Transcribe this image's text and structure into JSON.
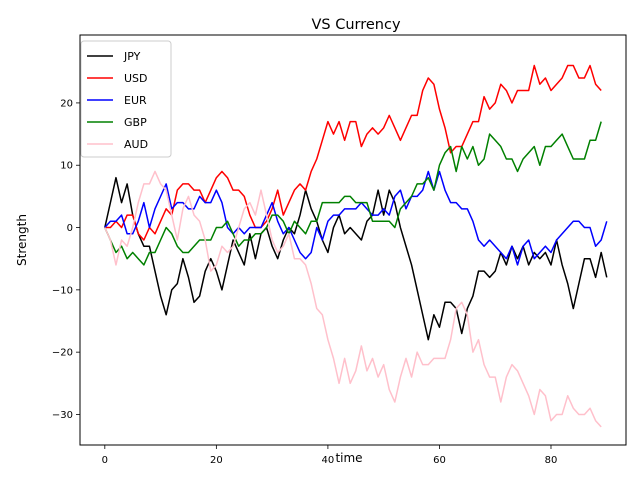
{
  "chart_data": {
    "type": "line",
    "title": "VS Currency",
    "xlabel": "time",
    "ylabel": "Strength",
    "xlim": [
      -4.45,
      93.45
    ],
    "ylim": [
      -34.9,
      30.9
    ],
    "xticks": [
      0,
      20,
      40,
      60,
      80
    ],
    "yticks": [
      -30,
      -20,
      -10,
      0,
      10,
      20
    ],
    "grid": false,
    "legend_position": "top-left",
    "series": [
      {
        "name": "JPY",
        "color": "#000000",
        "values": [
          0,
          4,
          8,
          4,
          7,
          2,
          -1,
          -3,
          -3,
          -7,
          -11,
          -14,
          -10,
          -9,
          -5,
          -8,
          -12,
          -11,
          -7,
          -5,
          -7,
          -10,
          -6,
          -2,
          -4,
          -6,
          -1,
          -5,
          -1,
          0,
          -3,
          -5,
          -2,
          0,
          -1,
          2,
          6,
          3,
          1,
          -2,
          -4,
          0,
          2,
          -1,
          0,
          -1,
          -2,
          1,
          2,
          6,
          2,
          6,
          4,
          0,
          -3,
          -6,
          -10,
          -14,
          -18,
          -14,
          -16,
          -12,
          -12,
          -13,
          -17,
          -13,
          -11,
          -7,
          -7,
          -8,
          -7,
          -4,
          -6,
          -3,
          -5,
          -3,
          -6,
          -4,
          -5,
          -4,
          -6,
          -2,
          -6,
          -9,
          -13,
          -9,
          -5,
          -5,
          -8,
          -4,
          -8
        ],
        "x": null
      },
      {
        "name": "USD",
        "color": "#ff0000",
        "values": [
          0,
          0,
          1,
          0,
          2,
          2,
          -1,
          -2,
          0,
          -1,
          1,
          3,
          2,
          6,
          7,
          7,
          6,
          6,
          4,
          6,
          8,
          9,
          8,
          6,
          6,
          5,
          2,
          0,
          0,
          1,
          3,
          6,
          2,
          4,
          6,
          7,
          6,
          9,
          11,
          14,
          17,
          15,
          17,
          14,
          17,
          17,
          13,
          15,
          16,
          15,
          16,
          18,
          16,
          14,
          16,
          18,
          18,
          22,
          24,
          23,
          19,
          16,
          12,
          13,
          13,
          15,
          17,
          17,
          21,
          19,
          20,
          23,
          22,
          20,
          22,
          22,
          22,
          26,
          23,
          24,
          22,
          23,
          24,
          26,
          26,
          24,
          24,
          26,
          23,
          22
        ]
      },
      {
        "name": "EUR",
        "color": "#0000ff",
        "values": [
          0,
          1,
          1,
          2,
          -1,
          -1,
          1,
          4,
          0,
          3,
          5,
          7,
          3,
          4,
          4,
          3,
          3,
          5,
          4,
          4,
          6,
          4,
          0,
          -1,
          0,
          -1,
          0,
          0,
          0,
          2,
          4,
          1,
          -1,
          0,
          -2,
          -4,
          -5,
          -4,
          0,
          -2,
          1,
          2,
          2,
          3,
          3,
          3,
          4,
          3,
          2,
          2,
          3,
          2,
          5,
          6,
          3,
          5,
          5,
          6,
          9,
          6,
          9,
          6,
          4,
          4,
          3,
          3,
          1,
          -2,
          -3,
          -2,
          -3,
          -4,
          -5,
          -3,
          -6,
          -3,
          -2,
          -5,
          -4,
          -3,
          -4,
          -2,
          -1,
          0,
          1,
          1,
          0,
          0,
          -3,
          -2,
          1
        ]
      },
      {
        "name": "GBP",
        "color": "#008000",
        "values": [
          0,
          -2,
          -4,
          -3,
          -5,
          -4,
          -5,
          -6,
          -4,
          -4,
          -2,
          0,
          -1,
          -3,
          -4,
          -4,
          -3,
          -2,
          -2,
          -2,
          0,
          0,
          1,
          -1,
          -3,
          -2,
          -2,
          -1,
          -1,
          0,
          2,
          2,
          1,
          -1,
          1,
          0,
          -1,
          1,
          1,
          4,
          4,
          4,
          4,
          5,
          5,
          4,
          4,
          4,
          1,
          1,
          1,
          1,
          0,
          3,
          4,
          5,
          7,
          7,
          8,
          6,
          10,
          12,
          13,
          9,
          13,
          11,
          13,
          10,
          11,
          15,
          14,
          13,
          11,
          11,
          9,
          11,
          12,
          13,
          10,
          13,
          13,
          14,
          15,
          13,
          11,
          11,
          11,
          14,
          14,
          17
        ]
      },
      {
        "name": "AUD",
        "color": "#ffc0cb",
        "values": [
          0,
          -2,
          -6,
          -2,
          -3,
          0,
          4,
          7,
          7,
          9,
          7,
          6,
          2,
          -2,
          3,
          5,
          2,
          1,
          -2,
          -7,
          -6,
          -3,
          -4,
          -3,
          0,
          3,
          4,
          2,
          6,
          2,
          -2,
          -4,
          -3,
          -1,
          -5,
          -5,
          -6,
          -9,
          -13,
          -14,
          -18,
          -21,
          -25,
          -21,
          -25,
          -23,
          -19,
          -23,
          -21,
          -24,
          -22,
          -26,
          -28,
          -24,
          -21,
          -24,
          -20,
          -22,
          -22,
          -21,
          -21,
          -21,
          -18,
          -13,
          -12,
          -14,
          -20,
          -18,
          -22,
          -24,
          -24,
          -28,
          -24,
          -22,
          -23,
          -25,
          -27,
          -30,
          -26,
          -27,
          -31,
          -30,
          -30,
          -27,
          -29,
          -30,
          -30,
          -29,
          -31,
          -32
        ]
      }
    ]
  }
}
